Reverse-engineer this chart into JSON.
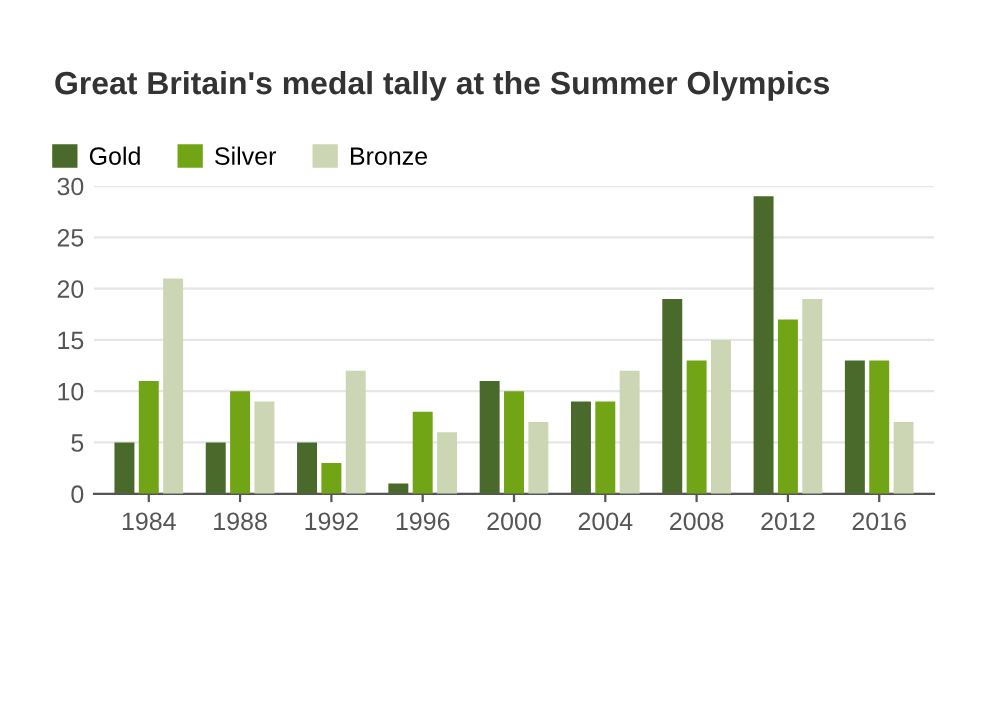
{
  "chart_data": {
    "type": "bar",
    "title": "Great Britain's medal tally at the Summer Olympics",
    "categories": [
      "1984",
      "1988",
      "1992",
      "1996",
      "2000",
      "2004",
      "2008",
      "2012",
      "2016"
    ],
    "series": [
      {
        "name": "Gold",
        "color": "#4a6a2b",
        "values": [
          5,
          5,
          5,
          1,
          11,
          9,
          19,
          29,
          13
        ]
      },
      {
        "name": "Silver",
        "color": "#72a515",
        "values": [
          11,
          10,
          3,
          8,
          10,
          9,
          13,
          17,
          13
        ]
      },
      {
        "name": "Bronze",
        "color": "#ccd6b4",
        "values": [
          21,
          9,
          12,
          6,
          7,
          12,
          15,
          19,
          7
        ]
      }
    ],
    "ylim": [
      0,
      30
    ],
    "yticks": [
      0,
      5,
      10,
      15,
      20,
      25,
      30
    ],
    "grid": "y",
    "legend": "top left"
  }
}
